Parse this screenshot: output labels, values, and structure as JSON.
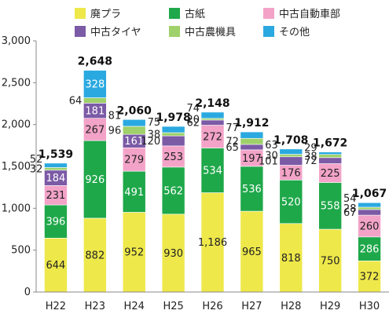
{
  "chart_data": {
    "type": "bar",
    "stacked": true,
    "title": "",
    "xlabel": "",
    "ylabel": "",
    "ylim": [
      0,
      3000
    ],
    "yticks": [
      0,
      500,
      1000,
      1500,
      2000,
      2500,
      3000
    ],
    "ytick_labels": [
      "0",
      "500",
      "1,000",
      "1,500",
      "2,000",
      "2,500",
      "3,000"
    ],
    "grid": false,
    "legend_position": "top",
    "categories": [
      "H22",
      "H23",
      "H24",
      "H25",
      "H26",
      "H27",
      "H28",
      "H29",
      "H30"
    ],
    "series": [
      {
        "name": "廃プラ",
        "color": "#eee84a",
        "values": [
          644,
          882,
          952,
          930,
          1186,
          965,
          818,
          750,
          372
        ]
      },
      {
        "name": "古紙",
        "color": "#1fa84a",
        "values": [
          396,
          926,
          491,
          562,
          534,
          536,
          520,
          558,
          286
        ]
      },
      {
        "name": "中古自動車部",
        "color": "#f3a3c8",
        "values": [
          231,
          267,
          279,
          253,
          272,
          197,
          176,
          225,
          260
        ]
      },
      {
        "name": "中古タイヤ",
        "color": "#7b5aa6",
        "values": [
          184,
          181,
          161,
          120,
          62,
          65,
          101,
          72,
          67
        ]
      },
      {
        "name": "中古農機具",
        "color": "#9fd06a",
        "values": [
          32,
          64,
          96,
          38,
          20,
          72,
          30,
          38,
          28
        ]
      },
      {
        "name": "その他",
        "color": "#2aa9e0",
        "values": [
          52,
          328,
          81,
          75,
          74,
          77,
          63,
          29,
          54
        ]
      }
    ],
    "segment_labels": [
      [
        "644",
        "882",
        "952",
        "930",
        "1,186",
        "965",
        "818",
        "750",
        "372"
      ],
      [
        "396",
        "926",
        "491",
        "562",
        "534",
        "536",
        "520",
        "558",
        "286"
      ],
      [
        "231",
        "267",
        "279",
        "253",
        "272",
        "197",
        "176",
        "225",
        "260"
      ],
      [
        "184",
        "181",
        "161",
        "120",
        "62",
        "65",
        "101",
        "72",
        "67"
      ],
      [
        "32",
        "64",
        "96",
        "38",
        "20",
        "72",
        "30",
        "38",
        "28"
      ],
      [
        "52",
        "328",
        "81",
        "75",
        "74",
        "77",
        "63",
        "29",
        "54"
      ]
    ],
    "totals": [
      "1,539",
      "2,648",
      "2,060",
      "1,978",
      "2,148",
      "1,912",
      "1,708",
      "1,672",
      "1,067"
    ]
  }
}
